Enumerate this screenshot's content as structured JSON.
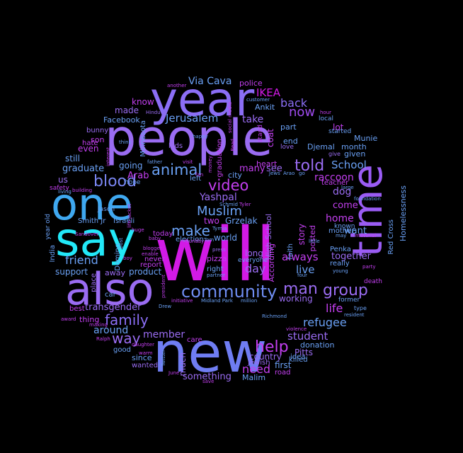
{
  "words": {
    "people": {
      "text": "people",
      "color": "#9a6cf2"
    },
    "will": {
      "text": "will",
      "color": "#d21ae6"
    },
    "year": {
      "text": "year",
      "color": "#8b6ef5"
    },
    "one": {
      "text": "one",
      "color": "#3fa8f0"
    },
    "say": {
      "text": "say",
      "color": "#22e8f8"
    },
    "also": {
      "text": "also",
      "color": "#9a6cf2"
    },
    "new": {
      "text": "new",
      "color": "#6f7df2"
    },
    "time": {
      "text": "time",
      "color": "#9a5cf4"
    },
    "blood": {
      "text": "blood",
      "color": "#7a86f2"
    },
    "animal": {
      "text": "animal",
      "color": "#6aa0f4"
    },
    "community": {
      "text": "community",
      "color": "#6f8df2"
    },
    "man": {
      "text": "man",
      "color": "#9a6cf2"
    },
    "group": {
      "text": "group",
      "color": "#9a6cf2"
    },
    "video": {
      "text": "video",
      "color": "#c33ff0"
    },
    "make": {
      "text": "make",
      "color": "#6aa0f4"
    },
    "Muslim": {
      "text": "Muslim",
      "color": "#6aa0f4"
    },
    "told": {
      "text": "told",
      "color": "#9a6cf2"
    },
    "family": {
      "text": "family",
      "color": "#8b6ef5"
    },
    "way": {
      "text": "way",
      "color": "#9a6cf2"
    },
    "help": {
      "text": "help",
      "color": "#c33ff0"
    },
    "IKEA": {
      "text": "IKEA",
      "color": "#d21ae6"
    },
    "now": {
      "text": "now",
      "color": "#a04cf0"
    },
    "back": {
      "text": "back",
      "color": "#8b6ef5"
    },
    "School": {
      "text": "School",
      "color": "#6aa0f4"
    },
    "Jerusalem": {
      "text": "Jerusalem",
      "color": "#6aa0f4"
    },
    "Via_Cava": {
      "text": "Via Cava",
      "color": "#6aa0f4"
    },
    "friend": {
      "text": "friend",
      "color": "#6aa0f4"
    },
    "refugee": {
      "text": "refugee",
      "color": "#6aa0f4"
    },
    "student": {
      "text": "student",
      "color": "#9a6cf2"
    },
    "life": {
      "text": "life",
      "color": "#c33ff0"
    },
    "member": {
      "text": "member",
      "color": "#9a6cf2"
    },
    "around": {
      "text": "around",
      "color": "#6aa0f4"
    },
    "need": {
      "text": "need",
      "color": "#c33ff0"
    },
    "day": {
      "text": "day",
      "color": "#9a6cf2"
    },
    "live": {
      "text": "live",
      "color": "#6aa0f4"
    },
    "always": {
      "text": "always",
      "color": "#c33ff0"
    },
    "together": {
      "text": "together",
      "color": "#9a6cf2"
    },
    "home": {
      "text": "home",
      "color": "#c33ff0"
    },
    "want": {
      "text": "want",
      "color": "#6aa0f4"
    },
    "come": {
      "text": "come",
      "color": "#c33ff0"
    },
    "raccoon": {
      "text": "raccoon",
      "color": "#c33ff0"
    },
    "dog": {
      "text": "dog",
      "color": "#9a6cf2"
    },
    "lot": {
      "text": "lot",
      "color": "#c33ff0"
    },
    "Homelessness": {
      "text": "Homelessness",
      "color": "#6aa0f4"
    },
    "Red_Cross": {
      "text": "Red Cross",
      "color": "#6aa0f4"
    },
    "take": {
      "text": "take",
      "color": "#9a6cf2"
    },
    "many": {
      "text": "many",
      "color": "#c33ff0"
    },
    "see": {
      "text": "see",
      "color": "#9a6cf2"
    },
    "Yashpal": {
      "text": "Yashpal",
      "color": "#9a6cf2"
    },
    "two": {
      "text": "two",
      "color": "#c33ff0"
    },
    "Grzelak": {
      "text": "Grzelak",
      "color": "#6aa0f4"
    },
    "world": {
      "text": "world",
      "color": "#6aa0f4"
    },
    "graduate": {
      "text": "graduate",
      "color": "#6aa0f4"
    },
    "still": {
      "text": "still",
      "color": "#6aa0f4"
    },
    "even": {
      "text": "even",
      "color": "#c33ff0"
    },
    "us": {
      "text": "us",
      "color": "#9a6cf2"
    },
    "Arab": {
      "text": "Arab",
      "color": "#c33ff0"
    },
    "going": {
      "text": "going",
      "color": "#6aa0f4"
    },
    "made": {
      "text": "made",
      "color": "#9a6cf2"
    },
    "Facebook": {
      "text": "Facebook",
      "color": "#6aa0f4"
    },
    "know": {
      "text": "know",
      "color": "#c33ff0"
    },
    "transgender": {
      "text": "transgender",
      "color": "#9a6cf2"
    },
    "product": {
      "text": "product",
      "color": "#6aa0f4"
    },
    "support": {
      "text": "support",
      "color": "#6aa0f4"
    },
    "something": {
      "text": "something",
      "color": "#9a6cf2"
    },
    "country": {
      "text": "country",
      "color": "#9a6cf2"
    },
    "first": {
      "text": "first",
      "color": "#6aa0f4"
    },
    "Pitts": {
      "text": "Pitts",
      "color": "#9a6cf2"
    },
    "donation": {
      "text": "donation",
      "color": "#6aa0f4"
    },
    "working": {
      "text": "working",
      "color": "#9a6cf2"
    },
    "Malim": {
      "text": "Malim",
      "color": "#6aa0f4"
    },
    "Ankit": {
      "text": "Ankit",
      "color": "#6aa0f4"
    },
    "Djemal": {
      "text": "Djemal",
      "color": "#6aa0f4"
    },
    "month": {
      "text": "month",
      "color": "#6aa0f4"
    },
    "Munie": {
      "text": "Munie",
      "color": "#6aa0f4"
    },
    "given": {
      "text": "given",
      "color": "#6aa0f4"
    },
    "part": {
      "text": "part",
      "color": "#6aa0f4"
    },
    "end": {
      "text": "end",
      "color": "#6aa0f4"
    },
    "coat": {
      "text": "coat",
      "color": "#c33ff0"
    },
    "heart": {
      "text": "heart",
      "color": "#c33ff0"
    },
    "city": {
      "text": "city",
      "color": "#6aa0f4"
    },
    "police": {
      "text": "police",
      "color": "#c33ff0"
    },
    "Smith_Jr": {
      "text": "Smith Jr",
      "color": "#6aa0f4"
    },
    "Israeli": {
      "text": "Israeli",
      "color": "#6aa0f4"
    },
    "son": {
      "text": "son",
      "color": "#c33ff0"
    },
    "bunny": {
      "text": "bunny",
      "color": "#9a6cf2"
    },
    "hate": {
      "text": "hate",
      "color": "#c33ff0"
    },
    "Minnesota": {
      "text": "Minnesota",
      "color": "#6aa0f4"
    },
    "graduation": {
      "text": "graduation",
      "color": "#c33ff0"
    },
    "High_School": {
      "text": "High School",
      "color": "#9a6cf2"
    },
    "According": {
      "text": "According",
      "color": "#c33ff0"
    },
    "story": {
      "text": "story",
      "color": "#c33ff0"
    },
    "posted": {
      "text": "posted",
      "color": "#c33ff0"
    },
    "long": {
      "text": "long",
      "color": "#9a6cf2"
    },
    "pizza": {
      "text": "pizza",
      "color": "#c33ff0"
    },
    "right": {
      "text": "right",
      "color": "#6aa0f4"
    },
    "never": {
      "text": "never",
      "color": "#c33ff0"
    },
    "India": {
      "text": "India",
      "color": "#6aa0f4"
    },
    "away": {
      "text": "away",
      "color": "#9a6cf2"
    },
    "thing": {
      "text": "thing",
      "color": "#c33ff0"
    },
    "since": {
      "text": "since",
      "color": "#6aa0f4"
    },
    "wanted": {
      "text": "wanted",
      "color": "#9a6cf2"
    },
    "good": {
      "text": "good",
      "color": "#6aa0f4"
    },
    "care": {
      "text": "care",
      "color": "#c33ff0"
    },
    "much": {
      "text": "much",
      "color": "#9a6cf2"
    },
    "best": {
      "text": "best",
      "color": "#c33ff0"
    },
    "car": {
      "text": "car",
      "color": "#6aa0f4"
    },
    "place": {
      "text": "place",
      "color": "#9a6cf2"
    },
    "Jason": {
      "text": "Jason",
      "color": "#6aa0f4"
    },
    "hope": {
      "text": "hope",
      "color": "#6aa0f4"
    },
    "kids": {
      "text": "kids",
      "color": "#9a6cf2"
    },
    "left": {
      "text": "left",
      "color": "#6aa0f4"
    },
    "teacher": {
      "text": "teacher",
      "color": "#c33ff0"
    },
    "mother": {
      "text": "mother",
      "color": "#6aa0f4"
    },
    "really": {
      "text": "really",
      "color": "#6aa0f4"
    },
    "former": {
      "text": "former",
      "color": "#6aa0f4"
    },
    "death": {
      "text": "death",
      "color": "#c33ff0"
    },
    "Penka": {
      "text": "Penka",
      "color": "#6aa0f4"
    },
    "local": {
      "text": "local",
      "color": "#6aa0f4"
    },
    "started": {
      "text": "started",
      "color": "#6aa0f4"
    },
    "known": {
      "text": "known",
      "color": "#6aa0f4"
    },
    "today": {
      "text": "today",
      "color": "#c33ff0"
    },
    "election": {
      "text": "election",
      "color": "#6aa0f4"
    },
    "report": {
      "text": "report",
      "color": "#c33ff0"
    },
    "faith": {
      "text": "faith",
      "color": "#6aa0f4"
    },
    "idea": {
      "text": "idea",
      "color": "#6aa0f4"
    },
    "killed": {
      "text": "killed",
      "color": "#6aa0f4"
    },
    "road": {
      "text": "road",
      "color": "#c33ff0"
    },
    "Jewish": {
      "text": "Jewish",
      "color": "#9a6cf2"
    },
    "love": {
      "text": "love",
      "color": "#9a6cf2"
    },
    "everyone": {
      "text": "everyone",
      "color": "#6aa0f4"
    },
    "Domino": {
      "text": "Domino",
      "color": "#6aa0f4"
    },
    "safety": {
      "text": "safety",
      "color": "#c33ff0"
    },
    "year_old": {
      "text": "year old",
      "color": "#6aa0f4"
    },
    "another": {
      "text": "another",
      "color": "#c33ff0"
    },
    "Hindu": {
      "text": "Hindu",
      "color": "#9a6cf2"
    },
    "customer": {
      "text": "customer",
      "color": "#6aa0f4"
    },
    "stand": {
      "text": "stand",
      "color": "#c33ff0"
    },
    "Sunday": {
      "text": "Sunday",
      "color": "#c33ff0"
    },
    "Midland_Park": {
      "text": "Midland Park",
      "color": "#6aa0f4"
    },
    "million": {
      "text": "million",
      "color": "#6aa0f4"
    },
    "initiative": {
      "text": "initiative",
      "color": "#c33ff0"
    },
    "Drew": {
      "text": "Drew",
      "color": "#6aa0f4"
    },
    "violence": {
      "text": "violence",
      "color": "#c33ff0"
    },
    "Richmond": {
      "text": "Richmond",
      "color": "#6aa0f4"
    },
    "Ralph": {
      "text": "Ralph",
      "color": "#c33ff0"
    },
    "June": {
      "text": "June",
      "color": "#c33ff0"
    },
    "save": {
      "text": "save",
      "color": "#c33ff0"
    },
    "type": {
      "text": "type",
      "color": "#6aa0f4"
    },
    "resident": {
      "text": "resident",
      "color": "#6aa0f4"
    },
    "material": {
      "text": "material",
      "color": "#c33ff0"
    },
    "party": {
      "text": "party",
      "color": "#c33ff0"
    },
    "young": {
      "text": "young",
      "color": "#6aa0f4"
    },
    "may": {
      "text": "may",
      "color": "#6aa0f4"
    },
    "four": {
      "text": "four",
      "color": "#6aa0f4"
    },
    "little": {
      "text": "little",
      "color": "#6aa0f4"
    },
    "hour": {
      "text": "hour",
      "color": "#c33ff0"
    },
    "give": {
      "text": "give",
      "color": "#9a6cf2"
    },
    "large": {
      "text": "large",
      "color": "#6aa0f4"
    },
    "foundation": {
      "text": "foundation",
      "color": "#6aa0f4"
    },
    "happy": {
      "text": "happy",
      "color": "#6aa0f4"
    },
    "visit": {
      "text": "visit",
      "color": "#c33ff0"
    },
    "father": {
      "text": "father",
      "color": "#6aa0f4"
    },
    "press": {
      "text": "press",
      "color": "#9a6cf2"
    },
    "partner": {
      "text": "partner",
      "color": "#6aa0f4"
    },
    "Tymia": {
      "text": "Tymia",
      "color": "#6aa0f4"
    },
    "Schmid": {
      "text": "Schmid",
      "color": "#6aa0f4"
    },
    "Tom": {
      "text": "Tom",
      "color": "#6aa0f4"
    },
    "Tyler": {
      "text": "Tyler",
      "color": "#c33ff0"
    },
    "Sandover": {
      "text": "Sandover",
      "color": "#c33ff0"
    },
    "making": {
      "text": "making",
      "color": "#c33ff0"
    },
    "daughter": {
      "text": "daughter",
      "color": "#c33ff0"
    },
    "award": {
      "text": "award",
      "color": "#c33ff0"
    },
    "living": {
      "text": "living",
      "color": "#6aa0f4"
    },
    "building": {
      "text": "building",
      "color": "#c33ff0"
    },
    "think": {
      "text": "think",
      "color": "#6aa0f4"
    },
    "interest": {
      "text": "interest",
      "color": "#c33ff0"
    },
    "blogger": {
      "text": "blogger",
      "color": "#c33ff0"
    },
    "enable": {
      "text": "enable",
      "color": "#c33ff0"
    },
    "boy": {
      "text": "boy",
      "color": "#c33ff0"
    },
    "baby": {
      "text": "baby",
      "color": "#c33ff0"
    },
    "huge": {
      "text": "huge",
      "color": "#c33ff0"
    },
    "warm": {
      "text": "warm",
      "color": "#c33ff0"
    },
    "Twitter": {
      "text": "Twitter",
      "color": "#6aa0f4"
    },
    "president": {
      "text": "president",
      "color": "#c33ff0"
    },
    "fan": {
      "text": "fan",
      "color": "#c33ff0"
    },
    "money": {
      "text": "money",
      "color": "#c33ff0"
    },
    "social_media": {
      "text": "social media",
      "color": "#c33ff0"
    },
    "Read": {
      "text": "Read",
      "color": "#c33ff0"
    },
    "Arao": {
      "text": "Arao",
      "color": "#6aa0f4"
    },
    "Jews": {
      "text": "Jews",
      "color": "#6aa0f4"
    },
    "go": {
      "text": "go",
      "color": "#6aa0f4"
    },
    "post": {
      "text": "post",
      "color": "#6aa0f4"
    },
    "life_jacket": {
      "text": "life jacket",
      "color": "#c33ff0"
    }
  }
}
